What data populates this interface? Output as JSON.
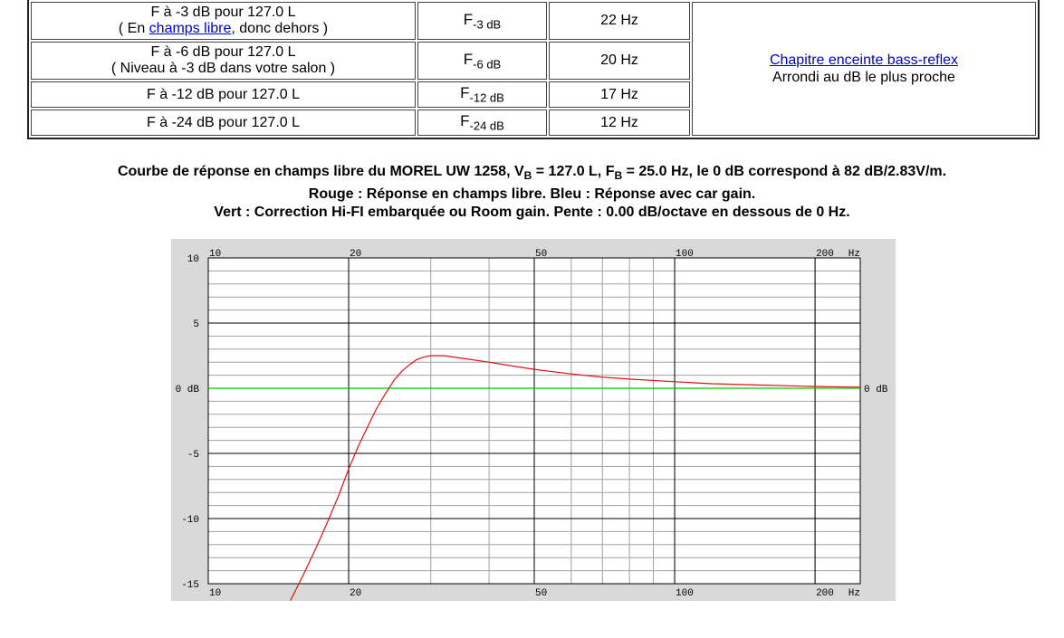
{
  "table": {
    "rows": [
      {
        "label_main": "F à -3 dB pour 127.0 L",
        "label_sub_pre": "( En ",
        "label_sub_link": "champs libre",
        "label_sub_post": ", donc dehors )",
        "sym": "F",
        "sym_sub": "-3 dB",
        "value": "22 Hz"
      },
      {
        "label_main": "F à -6 dB pour 127.0 L",
        "label_sub": "( Niveau à -3 dB dans votre salon )",
        "sym": "F",
        "sym_sub": "-6 dB",
        "value": "20 Hz"
      },
      {
        "label_main": "F à -12 dB pour 127.0 L",
        "sym": "F",
        "sym_sub": "-12 dB",
        "value": "17 Hz"
      },
      {
        "label_main": "F à -24 dB pour 127.0 L",
        "sym": "F",
        "sym_sub": "-24 dB",
        "value": "12 Hz"
      }
    ],
    "note_link": "Chapitre enceinte bass-reflex",
    "note_text": "Arrondi au dB le plus proche"
  },
  "caption": {
    "line1_a": "Courbe de réponse en champs libre du MOREL UW 1258, V",
    "line1_sub1": "B",
    "line1_b": " = 127.0 L, F",
    "line1_sub2": "B",
    "line1_c": " = 25.0 Hz, le 0 dB correspond à 82 dB/2.83V/m.",
    "line2": "Rouge : Réponse en champs libre. Bleu : Réponse avec car gain.",
    "line3": "Vert : Correction Hi-FI embarquée ou Room gain. Pente : 0.00 dB/octave en dessous de 0 Hz."
  },
  "chart_data": {
    "type": "line",
    "x_scale": "log",
    "xlim": [
      10,
      250
    ],
    "ylim": [
      -15,
      10
    ],
    "x_ticks": [
      {
        "value": 10,
        "label": "10"
      },
      {
        "value": 20,
        "label": "20"
      },
      {
        "value": 50,
        "label": "50"
      },
      {
        "value": 100,
        "label": "100"
      },
      {
        "value": 200,
        "label": "200"
      }
    ],
    "x_unit": "Hz",
    "y_ticks": [
      {
        "value": 10,
        "label": "10"
      },
      {
        "value": 5,
        "label": "5"
      },
      {
        "value": 0,
        "label": "0 dB"
      },
      {
        "value": -5,
        "label": "-5"
      },
      {
        "value": -10,
        "label": "-10"
      },
      {
        "value": -15,
        "label": "-15"
      }
    ],
    "y_right_label": "0 dB",
    "grid": true,
    "colors": {
      "background": "#d9d9d9",
      "plot": "#ffffff",
      "minor_grid": "#a0a0a0",
      "major_grid": "#000000"
    },
    "series": [
      {
        "color": "#e01010",
        "x": [
          15,
          16,
          17,
          18,
          19,
          20,
          21,
          22,
          23,
          24,
          25,
          26,
          27,
          28,
          29,
          30,
          32,
          35,
          40,
          45,
          50,
          60,
          70,
          80,
          100,
          120,
          150,
          200,
          250
        ],
        "y": [
          -16.3,
          -14.3,
          -12.3,
          -10.3,
          -8.3,
          -6.2,
          -4.4,
          -2.9,
          -1.5,
          -0.4,
          0.6,
          1.3,
          1.8,
          2.2,
          2.4,
          2.5,
          2.5,
          2.3,
          2.0,
          1.7,
          1.45,
          1.1,
          0.85,
          0.7,
          0.5,
          0.35,
          0.25,
          0.13,
          0.08
        ]
      },
      {
        "color": "#00cc00",
        "x": [
          10,
          250
        ],
        "y": [
          0,
          0
        ]
      }
    ]
  }
}
